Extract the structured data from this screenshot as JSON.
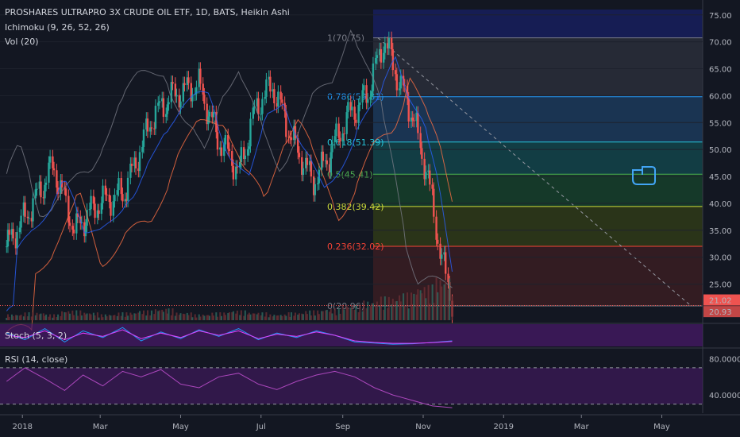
{
  "chart_data": {
    "type": "line",
    "title": "PROSHARES ULTRAPRO 3X CRUDE OIL ETF, 1D, BATS, Heikin Ashi",
    "indicators_top": [
      "Ichimoku (9, 26, 52, 26)",
      "Vol (20)"
    ],
    "price_axis": {
      "ticks": [
        "75.00",
        "70.00",
        "65.00",
        "60.00",
        "55.00",
        "50.00",
        "45.00",
        "40.00",
        "35.00",
        "30.00",
        "25.00"
      ],
      "ylim": [
        18,
        76
      ],
      "last_price_label": "21.02",
      "secondary_price_label": "20.93",
      "colors": {
        "last": "#ef5350",
        "secondary": "#ef5350"
      }
    },
    "time_axis": {
      "labels": [
        "2018",
        "Mar",
        "May",
        "Jul",
        "Sep",
        "Nov",
        "2019",
        "Mar",
        "May"
      ]
    },
    "fibonacci": {
      "levels": [
        {
          "ratio": 1,
          "price": 70.75,
          "label": "1(70.75)",
          "color": "#787b86"
        },
        {
          "ratio": 0.786,
          "price": 59.81,
          "label": "0.786(59.81)",
          "color": "#2196f3"
        },
        {
          "ratio": 0.618,
          "price": 51.39,
          "label": "0.618(51.39)",
          "color": "#26c6da"
        },
        {
          "ratio": 0.5,
          "price": 45.41,
          "label": "0.5(45.41)",
          "color": "#4caf50"
        },
        {
          "ratio": 0.382,
          "price": 39.42,
          "label": "0.382(39.42)",
          "color": "#cddc39"
        },
        {
          "ratio": 0.236,
          "price": 32.02,
          "label": "0.236(32.02)",
          "color": "#f44336"
        },
        {
          "ratio": 0,
          "price": 20.96,
          "label": "0(20.96)",
          "color": "#787b86"
        }
      ]
    },
    "price_series": {
      "name": "",
      "x": [
        "2017-12-20",
        "2018-01-05",
        "2018-01-25",
        "2018-02-10",
        "2018-02-28",
        "2018-03-20",
        "2018-04-10",
        "2018-04-25",
        "2018-05-15",
        "2018-05-30",
        "2018-06-15",
        "2018-06-28",
        "2018-07-10",
        "2018-07-25",
        "2018-08-10",
        "2018-08-20",
        "2018-09-05",
        "2018-09-20",
        "2018-10-03",
        "2018-10-15",
        "2018-10-25",
        "2018-11-05",
        "2018-11-15",
        "2018-11-23"
      ],
      "y": [
        32,
        38,
        47,
        35,
        40,
        42,
        56,
        60,
        62,
        52,
        46,
        58,
        62,
        52,
        44,
        48,
        56,
        60,
        70.5,
        62,
        56,
        45,
        30,
        22
      ]
    },
    "volume_series": {
      "name": "Vol (20)",
      "values": [
        3,
        4,
        3,
        5,
        4,
        3,
        4,
        5,
        6,
        4,
        3,
        4,
        5,
        4,
        3,
        4,
        5,
        6,
        8,
        10,
        12,
        14,
        18,
        22
      ]
    },
    "stoch": {
      "label": "Stoch (5, 3, 2)",
      "k_values": [
        60,
        30,
        80,
        20,
        70,
        40,
        85,
        25,
        65,
        35,
        75,
        45,
        80,
        30,
        60,
        40,
        70,
        50,
        20,
        15,
        10,
        12,
        18,
        25
      ],
      "d_values": [
        50,
        40,
        70,
        30,
        60,
        45,
        75,
        35,
        60,
        40,
        70,
        50,
        70,
        35,
        55,
        45,
        65,
        50,
        25,
        18,
        14,
        14,
        17,
        22
      ],
      "ylim": [
        0,
        100
      ]
    },
    "rsi": {
      "label": "RSI (14, close)",
      "ticks": [
        "80.0000",
        "40.0000"
      ],
      "values": [
        55,
        70,
        58,
        45,
        62,
        50,
        66,
        60,
        68,
        52,
        48,
        60,
        64,
        52,
        46,
        55,
        62,
        66,
        60,
        48,
        40,
        34,
        28,
        26
      ],
      "ylim": [
        20,
        90
      ],
      "bands": [
        70,
        30
      ]
    },
    "colors": {
      "background": "#131722",
      "up_candle": "#26a69a",
      "down_candle": "#ef5350",
      "ichimoku_cloud": "#2e4a3a",
      "stoch_k": "#2196f3",
      "stoch_d": "#e040fb",
      "rsi_line": "#ab47bc",
      "panel_band": "#4a1a6b"
    },
    "annotations": [
      "pointing-hand-icon"
    ]
  }
}
